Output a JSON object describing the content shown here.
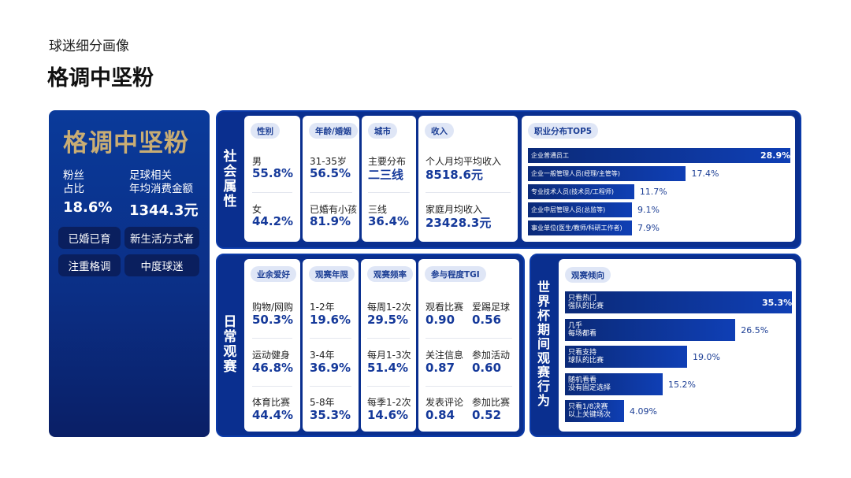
{
  "header": {
    "subtitle": "球迷细分画像",
    "title": "格调中坚粉"
  },
  "profile": {
    "name": "格调中坚粉",
    "fan_ratio_label_1": "粉丝",
    "fan_ratio_label_2": "占比",
    "fan_ratio_value": "18.6%",
    "spend_label_1": "足球相关",
    "spend_label_2": "年均消费金额",
    "spend_value": "1344.3元",
    "tags": [
      "已婚已育",
      "新生活方式者",
      "注重格调",
      "中度球迷"
    ]
  },
  "social": {
    "section_label": "社会属性",
    "gender": {
      "title": "性别",
      "rows": [
        {
          "k": "男",
          "v": "55.8%"
        },
        {
          "k": "女",
          "v": "44.2%"
        }
      ]
    },
    "age": {
      "title": "年龄/婚姻",
      "rows": [
        {
          "k": "31-35岁",
          "v": "56.5%"
        },
        {
          "k": "已婚有小孩",
          "v": "81.9%"
        }
      ]
    },
    "city": {
      "title": "城市",
      "rows": [
        {
          "k": "主要分布",
          "v": "二三线"
        },
        {
          "k": "三线",
          "v": "36.4%"
        }
      ]
    },
    "income": {
      "title": "收入",
      "rows": [
        {
          "k": "个人月均平均收入",
          "v": "8518.6元"
        },
        {
          "k": "家庭月均收入",
          "v": "23428.3元"
        }
      ]
    },
    "occupation": {
      "title": "职业分布TOP5",
      "items": [
        {
          "label": "企业普通员工",
          "value": "28.9%"
        },
        {
          "label": "企业一般管理人员(经理/主管等)",
          "value": "17.4%"
        },
        {
          "label": "专业技术人员(技术员/工程师)",
          "value": "11.7%"
        },
        {
          "label": "企业中层管理人员(总监等)",
          "value": "9.1%"
        },
        {
          "label": "事业单位(医生/教师/科研工作者)",
          "value": "7.9%"
        }
      ]
    }
  },
  "daily": {
    "section_label": "日常观赛",
    "hobby": {
      "title": "业余爱好",
      "rows": [
        {
          "k": "购物/网购",
          "v": "50.3%"
        },
        {
          "k": "运动健身",
          "v": "46.8%"
        },
        {
          "k": "体育比赛",
          "v": "44.4%"
        }
      ]
    },
    "years": {
      "title": "观赛年限",
      "rows": [
        {
          "k": "1-2年",
          "v": "19.6%"
        },
        {
          "k": "3-4年",
          "v": "36.9%"
        },
        {
          "k": "5-8年",
          "v": "35.3%"
        }
      ]
    },
    "freq": {
      "title": "观赛频率",
      "rows": [
        {
          "k": "每周1-2次",
          "v": "29.5%"
        },
        {
          "k": "每月1-3次",
          "v": "51.4%"
        },
        {
          "k": "每季1-2次",
          "v": "14.6%"
        }
      ]
    },
    "tgi": {
      "title": "参与程度TGI",
      "rows": [
        {
          "k1": "观看比赛",
          "v1": "0.90",
          "k2": "爱踢足球",
          "v2": "0.56"
        },
        {
          "k1": "关注信息",
          "v1": "0.87",
          "k2": "参加活动",
          "v2": "0.60"
        },
        {
          "k1": "发表评论",
          "v1": "0.84",
          "k2": "参加比赛",
          "v2": "0.52"
        }
      ]
    }
  },
  "worldcup": {
    "section_label": "世界杯期间观赛行为",
    "title": "观赛倾向",
    "items": [
      {
        "label": "只看热门\n强队的比赛",
        "value": "35.3%"
      },
      {
        "label": "几乎\n每场都看",
        "value": "26.5%"
      },
      {
        "label": "只看支持\n球队的比赛",
        "value": "19.0%"
      },
      {
        "label": "随机看看\n没有固定选择",
        "value": "15.2%"
      },
      {
        "label": "只看1/8决赛\n以上关键场次",
        "value": "4.09%"
      }
    ]
  },
  "chart_data": [
    {
      "type": "bar",
      "title": "职业分布TOP5",
      "categories": [
        "企业普通员工",
        "企业一般管理人员(经理/主管等)",
        "专业技术人员(技术员/工程师)",
        "企业中层管理人员(总监等)",
        "事业单位(医生/教师/科研工作者)"
      ],
      "values": [
        28.9,
        17.4,
        11.7,
        9.1,
        7.9
      ]
    },
    {
      "type": "bar",
      "title": "观赛倾向",
      "categories": [
        "只看热门强队的比赛",
        "几乎每场都看",
        "只看支持球队的比赛",
        "随机看看没有固定选择",
        "只看1/8决赛以上关键场次"
      ],
      "values": [
        35.3,
        26.5,
        19.0,
        15.2,
        4.09
      ]
    }
  ]
}
